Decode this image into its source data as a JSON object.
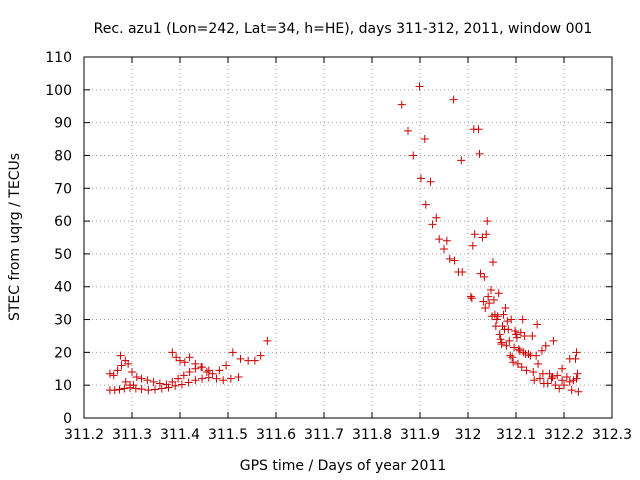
{
  "chart_data": {
    "type": "scatter",
    "title": "Rec. azu1 (Lon=242, Lat=34, h=HE), days 311-312, 2011, window 001",
    "xlabel": "GPS time / Days of year 2011",
    "ylabel": "STEC from uqrg / TECUs",
    "xlim": [
      311.2,
      312.3
    ],
    "ylim": [
      0,
      110
    ],
    "xticks": [
      "311.2",
      "311.3",
      "311.4",
      "311.5",
      "311.6",
      "311.7",
      "311.8",
      "311.9",
      "312",
      "312.1",
      "312.2",
      "312.3"
    ],
    "yticks": [
      "0",
      "10",
      "20",
      "30",
      "40",
      "50",
      "60",
      "70",
      "80",
      "90",
      "100",
      "110"
    ],
    "grid": true,
    "marker": "plus",
    "color": "#cc0000",
    "points": [
      [
        311.254,
        13.5
      ],
      [
        311.262,
        13.0
      ],
      [
        311.27,
        14.5
      ],
      [
        311.278,
        16.0
      ],
      [
        311.286,
        17.5
      ],
      [
        311.292,
        16.5
      ],
      [
        311.3,
        14.0
      ],
      [
        311.31,
        12.5
      ],
      [
        311.32,
        12.0
      ],
      [
        311.332,
        11.5
      ],
      [
        311.345,
        11.0
      ],
      [
        311.358,
        10.5
      ],
      [
        311.372,
        10.2
      ],
      [
        311.384,
        11.0
      ],
      [
        311.396,
        12.0
      ],
      [
        311.408,
        13.0
      ],
      [
        311.42,
        14.0
      ],
      [
        311.432,
        15.0
      ],
      [
        311.446,
        15.5
      ],
      [
        311.46,
        14.5
      ],
      [
        311.254,
        8.5
      ],
      [
        311.264,
        8.5
      ],
      [
        311.274,
        8.7
      ],
      [
        311.284,
        9.0
      ],
      [
        311.296,
        9.2
      ],
      [
        311.308,
        9.0
      ],
      [
        311.32,
        8.8
      ],
      [
        311.334,
        8.5
      ],
      [
        311.348,
        8.7
      ],
      [
        311.362,
        9.0
      ],
      [
        311.376,
        9.3
      ],
      [
        311.39,
        9.8
      ],
      [
        311.404,
        10.2
      ],
      [
        311.418,
        10.8
      ],
      [
        311.432,
        11.5
      ],
      [
        311.446,
        12.0
      ],
      [
        311.46,
        12.3
      ],
      [
        311.476,
        12.0
      ],
      [
        311.49,
        11.5
      ],
      [
        311.506,
        12.0
      ],
      [
        311.522,
        12.5
      ],
      [
        311.276,
        19.0
      ],
      [
        311.287,
        11.0
      ],
      [
        311.296,
        10.0
      ],
      [
        311.303,
        10.0
      ],
      [
        311.384,
        20.0
      ],
      [
        311.392,
        18.5
      ],
      [
        311.4,
        17.5
      ],
      [
        311.41,
        17.0
      ],
      [
        311.42,
        18.5
      ],
      [
        311.432,
        16.5
      ],
      [
        311.444,
        15.5
      ],
      [
        311.456,
        14.0
      ],
      [
        311.468,
        13.5
      ],
      [
        311.482,
        14.5
      ],
      [
        311.496,
        16.0
      ],
      [
        311.51,
        20.0
      ],
      [
        311.526,
        18.0
      ],
      [
        311.542,
        17.5
      ],
      [
        311.556,
        17.5
      ],
      [
        311.568,
        19.0
      ],
      [
        311.582,
        23.5
      ],
      [
        311.862,
        95.5
      ],
      [
        311.875,
        87.5
      ],
      [
        311.886,
        80.0
      ],
      [
        311.899,
        101.0
      ],
      [
        311.902,
        73.0
      ],
      [
        311.91,
        85.0
      ],
      [
        311.912,
        65.0
      ],
      [
        311.922,
        72.0
      ],
      [
        311.926,
        59.0
      ],
      [
        311.934,
        61.0
      ],
      [
        311.94,
        54.5
      ],
      [
        311.95,
        51.5
      ],
      [
        311.956,
        54.0
      ],
      [
        311.962,
        48.5
      ],
      [
        311.97,
        97.0
      ],
      [
        311.972,
        48.0
      ],
      [
        311.98,
        44.5
      ],
      [
        311.986,
        78.5
      ],
      [
        311.988,
        44.5
      ],
      [
        312.006,
        37.0
      ],
      [
        312.01,
        52.5
      ],
      [
        312.012,
        88.0
      ],
      [
        312.014,
        56.0
      ],
      [
        312.022,
        88.0
      ],
      [
        312.024,
        80.5
      ],
      [
        312.026,
        44.0
      ],
      [
        312.03,
        55.0
      ],
      [
        312.032,
        35.5
      ],
      [
        312.034,
        43.0
      ],
      [
        312.038,
        56.0
      ],
      [
        312.04,
        60.0
      ],
      [
        312.042,
        37.0
      ],
      [
        312.044,
        35.0
      ],
      [
        312.048,
        39.0
      ],
      [
        312.052,
        47.5
      ],
      [
        312.054,
        36.0
      ],
      [
        312.056,
        31.5
      ],
      [
        312.058,
        28.0
      ],
      [
        312.06,
        30.0
      ],
      [
        312.062,
        31.0
      ],
      [
        312.064,
        38.0
      ],
      [
        312.066,
        25.5
      ],
      [
        312.068,
        24.0
      ],
      [
        312.07,
        23.0
      ],
      [
        312.072,
        28.0
      ],
      [
        312.074,
        31.5
      ],
      [
        312.076,
        27.0
      ],
      [
        312.078,
        33.5
      ],
      [
        312.08,
        22.0
      ],
      [
        312.082,
        29.5
      ],
      [
        312.084,
        27.0
      ],
      [
        312.086,
        23.5
      ],
      [
        312.088,
        19.0
      ],
      [
        312.09,
        30.0
      ],
      [
        312.092,
        18.5
      ],
      [
        312.094,
        17.0
      ],
      [
        312.098,
        26.5
      ],
      [
        312.1,
        25.5
      ],
      [
        312.102,
        24.5
      ],
      [
        312.104,
        16.5
      ],
      [
        312.106,
        21.0
      ],
      [
        312.108,
        20.5
      ],
      [
        312.11,
        26.0
      ],
      [
        312.112,
        15.5
      ],
      [
        312.114,
        30.0
      ],
      [
        312.118,
        25.0
      ],
      [
        312.12,
        19.5
      ],
      [
        312.122,
        14.5
      ],
      [
        312.126,
        19.5
      ],
      [
        312.13,
        19.0
      ],
      [
        312.134,
        25.0
      ],
      [
        312.138,
        11.5
      ],
      [
        312.142,
        19.0
      ],
      [
        312.144,
        28.5
      ],
      [
        312.146,
        16.5
      ],
      [
        312.15,
        12.0
      ],
      [
        312.154,
        20.5
      ],
      [
        312.158,
        10.5
      ],
      [
        312.162,
        22.0
      ],
      [
        312.166,
        10.5
      ],
      [
        312.17,
        13.5
      ],
      [
        312.174,
        12.0
      ],
      [
        312.178,
        23.5
      ],
      [
        312.182,
        10.0
      ],
      [
        312.186,
        13.0
      ],
      [
        312.19,
        9.0
      ],
      [
        312.196,
        15.0
      ],
      [
        312.2,
        10.0
      ],
      [
        312.206,
        12.5
      ],
      [
        312.212,
        18.0
      ],
      [
        312.216,
        8.5
      ],
      [
        312.22,
        11.5
      ],
      [
        312.224,
        18.0
      ],
      [
        312.226,
        20.0
      ],
      [
        312.228,
        13.5
      ],
      [
        312.23,
        8.0
      ],
      [
        312.008,
        36.5
      ],
      [
        312.036,
        33.5
      ],
      [
        312.05,
        31.0
      ],
      [
        312.07,
        22.5
      ],
      [
        312.096,
        21.5
      ],
      [
        312.116,
        20.0
      ],
      [
        312.136,
        14.0
      ],
      [
        312.156,
        13.5
      ],
      [
        312.176,
        12.5
      ],
      [
        312.196,
        11.5
      ],
      [
        312.212,
        11.0
      ],
      [
        312.226,
        12.0
      ]
    ]
  }
}
